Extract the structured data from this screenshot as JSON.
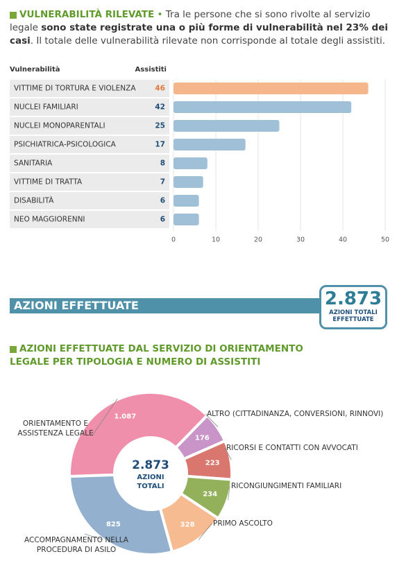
{
  "intro": {
    "title": "VULNERABILITÀ RILEVATE",
    "text_parts": [
      "Tra le persone che si sono rivolte al servizio legale ",
      "sono state registrate una o più forme di vulnerabilità nel 23% dei casi",
      ". Il totale delle vulnerabilità rilevate non corrisponde al totale degli assistiti."
    ]
  },
  "section_heading": "AZIONI EFFETTUATE",
  "summary_badge": {
    "total": {
      "value": 2873,
      "label": "2.873"
    },
    "label": "AZIONI TOTALI EFFETTUATE"
  },
  "chart_data": [
    {
      "type": "hbar",
      "category_header": "Vulnerabilità",
      "value_header": "Assistiti",
      "categories": [
        "VITTIME DI TORTURA E VIOLENZA",
        "NUCLEI FAMILIARI",
        "NUCLEI MONOPARENTALI",
        "PSICHIATRICA-PSICOLOGICA",
        "SANITARIA",
        "VITTIME DI TRATTA",
        "DISABILITÀ",
        "NEO MAGGIORENNI"
      ],
      "values": [
        46,
        42,
        25,
        17,
        8,
        7,
        6,
        6
      ],
      "colors": [
        "#f6b68b",
        "#9fc0d6",
        "#9fc0d6",
        "#9fc0d6",
        "#9fc0d6",
        "#9fc0d6",
        "#9fc0d6",
        "#9fc0d6"
      ],
      "label_colors": [
        "#e07b3f",
        "#1f4e79",
        "#1f4e79",
        "#1f4e79",
        "#1f4e79",
        "#1f4e79",
        "#1f4e79",
        "#1f4e79"
      ],
      "xlim": [
        0,
        50
      ],
      "xticks": [
        0,
        10,
        20,
        30,
        40,
        50
      ],
      "grid": true
    },
    {
      "type": "donut",
      "title": "AZIONI EFFETTUATE DAL SERVIZIO DI ORIENTAMENTO LEGALE PER TIPOLOGIA E NUMERO DI ASSISTITI",
      "categories": [
        "ORIENTAMENTO E ASSISTENZA LEGALE",
        "ALTRO (CITTADINANZA, CONVERSIONI, RINNOVI)",
        "RICORSI E CONTATTI CON AVVOCATI",
        "RICONGIUNGIMENTI FAMILIARI",
        "PRIMO ASCOLTO",
        "ACCOMPAGNAMENTO NELLA PROCEDURA DI ASILO"
      ],
      "values": [
        1087,
        176,
        223,
        234,
        328,
        825
      ],
      "value_labels": [
        "1.087",
        "176",
        "223",
        "234",
        "328",
        "825"
      ],
      "colors": [
        "#ef8fab",
        "#c995c9",
        "#d9776f",
        "#93b05a",
        "#f7bb91",
        "#93b1cf"
      ],
      "center_total": {
        "value": 2873,
        "label": "2.873"
      },
      "center_label": "AZIONI TOTALI"
    }
  ]
}
